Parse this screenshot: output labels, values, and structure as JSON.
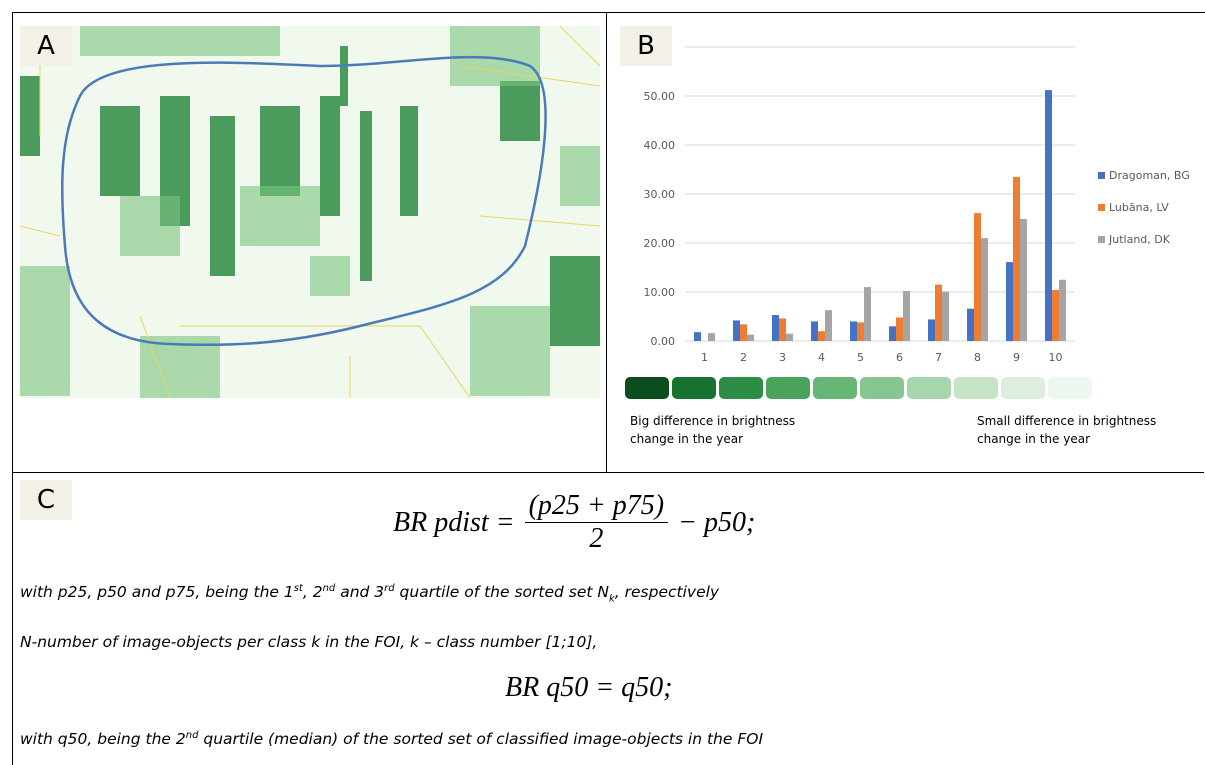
{
  "panel_a": {
    "label": "A"
  },
  "panel_b": {
    "label": "B",
    "scale_left": "Big difference in brightness change in the year",
    "scale_right": "Small difference in brightness change in the year"
  },
  "chart_data": {
    "type": "bar",
    "categories": [
      "1",
      "2",
      "3",
      "4",
      "5",
      "6",
      "7",
      "8",
      "9",
      "10"
    ],
    "series": [
      {
        "name": "Dragoman, BG",
        "color": "#4472c4",
        "values": [
          1.8,
          4.2,
          5.3,
          4.0,
          4.0,
          3.0,
          4.4,
          6.6,
          16.1,
          51.2
        ]
      },
      {
        "name": "Lubāna, LV",
        "color": "#ed7d31",
        "values": [
          null,
          3.4,
          4.6,
          2.0,
          3.8,
          4.8,
          11.5,
          26.1,
          33.5,
          10.4
        ]
      },
      {
        "name": "Jutland, DK",
        "color": "#a5a5a5",
        "values": [
          1.6,
          1.3,
          1.5,
          6.3,
          11.0,
          10.2,
          10.1,
          21.0,
          24.9,
          12.5
        ]
      }
    ],
    "ylim": [
      0,
      60
    ],
    "yticks": [
      {
        "value": 0,
        "label": "0.00"
      },
      {
        "value": 10,
        "label": "10.00"
      },
      {
        "value": 20,
        "label": "20.00"
      },
      {
        "value": 30,
        "label": "30.00"
      },
      {
        "value": 40,
        "label": "40.00"
      },
      {
        "value": 50,
        "label": "50.00"
      }
    ],
    "grid": true,
    "legend": "right"
  },
  "panel_c": {
    "label": "C",
    "formula1": {
      "lhs": "BR pdist =",
      "numerator": "(p25 + p75)",
      "denominator": "2",
      "rhs": "− p50;"
    },
    "note1": [
      "with p25, p50 and p75, being the 1",
      "st",
      ", 2",
      "nd",
      " and 3",
      "rd",
      " quartile of the sorted set N",
      "k",
      ", respectively"
    ],
    "note2": "N-number of image-objects per class k in the FOI, k – class number [1;10],",
    "formula2": "BR q50 =  q50;",
    "note3": [
      "with q50, being the  2",
      "nd",
      " quartile (median) of the sorted set of classified image-objects in the FOI"
    ]
  }
}
